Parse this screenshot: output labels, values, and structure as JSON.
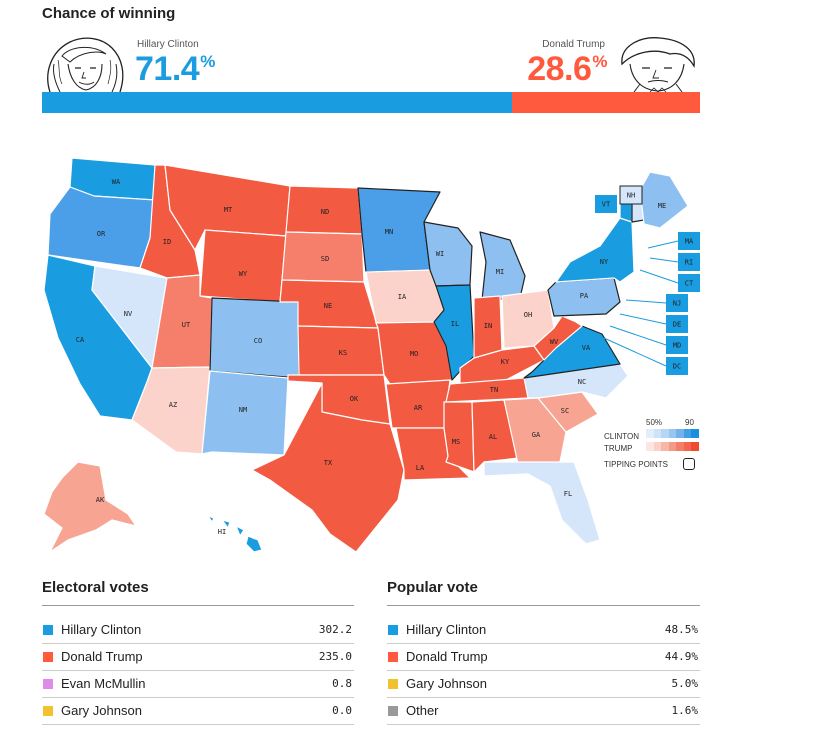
{
  "title": "Chance of winning",
  "clinton": {
    "name": "Hillary Clinton",
    "pct": "71.4",
    "pct_value": 71.4,
    "color": "#1A9CE0"
  },
  "trump": {
    "name": "Donald Trump",
    "pct": "28.6",
    "pct_value": 28.6,
    "color": "#FF5A3D"
  },
  "percent_sign": "%",
  "legend": {
    "low": "50%",
    "high": "90",
    "clinton": "CLINTON",
    "trump": "TRUMP",
    "tipping": "TIPPING POINTS",
    "clinton_shades": [
      "#e2eefb",
      "#cfe3f8",
      "#b6d6f5",
      "#98c6f1",
      "#74b2ec",
      "#3fa0e6",
      "#1a8fdf"
    ],
    "trump_shades": [
      "#fde6e2",
      "#fbd0c8",
      "#f8b6a9",
      "#f69a88",
      "#f47f69",
      "#f2664f",
      "#f04a33"
    ]
  },
  "states": {
    "WA": "WA",
    "OR": "OR",
    "CA": "CA",
    "NV": "NV",
    "ID": "ID",
    "MT": "MT",
    "WY": "WY",
    "UT": "UT",
    "AZ": "AZ",
    "CO": "CO",
    "NM": "NM",
    "ND": "ND",
    "SD": "SD",
    "NE": "NE",
    "KS": "KS",
    "OK": "OK",
    "TX": "TX",
    "MN": "MN",
    "IA": "IA",
    "MO": "MO",
    "AR": "AR",
    "LA": "LA",
    "WI": "WI",
    "IL": "IL",
    "MI": "MI",
    "IN": "IN",
    "OH": "OH",
    "KY": "KY",
    "TN": "TN",
    "MS": "MS",
    "AL": "AL",
    "GA": "GA",
    "FL": "FL",
    "SC": "SC",
    "NC": "NC",
    "VA": "VA",
    "WV": "WV",
    "PA": "PA",
    "NY": "NY",
    "VT": "VT",
    "NH": "NH",
    "ME": "ME",
    "AK": "AK",
    "HI": "HI",
    "MA": "MA",
    "RI": "RI",
    "CT": "CT",
    "NJ": "NJ",
    "DE": "DE",
    "MD": "MD",
    "DC": "DC"
  },
  "electoral": {
    "title": "Electoral votes",
    "rows": [
      {
        "name": "Hillary Clinton",
        "value": "302.2",
        "color": "#1A9CE0"
      },
      {
        "name": "Donald Trump",
        "value": "235.0",
        "color": "#FF5A3D"
      },
      {
        "name": "Evan McMullin",
        "value": "0.8",
        "color": "#E28AE8"
      },
      {
        "name": "Gary Johnson",
        "value": "0.0",
        "color": "#F2C12E"
      }
    ]
  },
  "popular": {
    "title": "Popular vote",
    "rows": [
      {
        "name": "Hillary Clinton",
        "value": "48.5%",
        "color": "#1A9CE0"
      },
      {
        "name": "Donald Trump",
        "value": "44.9%",
        "color": "#FF5A3D"
      },
      {
        "name": "Gary Johnson",
        "value": "5.0%",
        "color": "#F2C12E"
      },
      {
        "name": "Other",
        "value": "1.6%",
        "color": "#999999"
      }
    ]
  },
  "chart_data": {
    "type": "bar",
    "title": "Chance of winning",
    "categories": [
      "Hillary Clinton",
      "Donald Trump"
    ],
    "values": [
      71.4,
      28.6
    ],
    "ylim": [
      0,
      100
    ]
  }
}
